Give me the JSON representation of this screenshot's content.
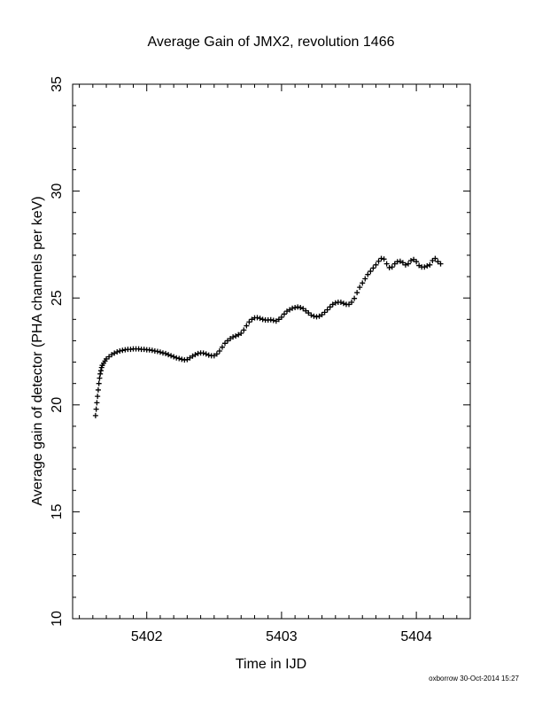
{
  "chart_data": {
    "type": "scatter",
    "title": "Average Gain of JMX2, revolution 1466",
    "xlabel": "Time in IJD",
    "ylabel": "Average gain of detector (PHA channels per keV)",
    "xlim": [
      5401.45,
      5404.4
    ],
    "ylim": [
      10,
      35
    ],
    "xticks": [
      "5402",
      "5403",
      "5404"
    ],
    "yticks": [
      "10",
      "15",
      "20",
      "25",
      "30",
      "35"
    ],
    "grid": false,
    "marker": "plus",
    "series": [
      {
        "points": [
          [
            5401.62,
            19.5
          ],
          [
            5401.625,
            19.8
          ],
          [
            5401.63,
            20.1
          ],
          [
            5401.635,
            20.4
          ],
          [
            5401.64,
            20.7
          ],
          [
            5401.645,
            21.0
          ],
          [
            5401.65,
            21.25
          ],
          [
            5401.655,
            21.45
          ],
          [
            5401.66,
            21.6
          ],
          [
            5401.665,
            21.75
          ],
          [
            5401.67,
            21.85
          ],
          [
            5401.68,
            21.95
          ],
          [
            5401.69,
            22.05
          ],
          [
            5401.7,
            22.15
          ],
          [
            5401.72,
            22.25
          ],
          [
            5401.74,
            22.35
          ],
          [
            5401.76,
            22.42
          ],
          [
            5401.78,
            22.48
          ],
          [
            5401.8,
            22.52
          ],
          [
            5401.82,
            22.55
          ],
          [
            5401.84,
            22.58
          ],
          [
            5401.86,
            22.6
          ],
          [
            5401.88,
            22.6
          ],
          [
            5401.9,
            22.62
          ],
          [
            5401.92,
            22.62
          ],
          [
            5401.94,
            22.62
          ],
          [
            5401.96,
            22.6
          ],
          [
            5401.98,
            22.6
          ],
          [
            5402.0,
            22.58
          ],
          [
            5402.02,
            22.57
          ],
          [
            5402.04,
            22.55
          ],
          [
            5402.06,
            22.52
          ],
          [
            5402.08,
            22.5
          ],
          [
            5402.1,
            22.47
          ],
          [
            5402.12,
            22.43
          ],
          [
            5402.14,
            22.4
          ],
          [
            5402.16,
            22.35
          ],
          [
            5402.18,
            22.3
          ],
          [
            5402.2,
            22.25
          ],
          [
            5402.22,
            22.2
          ],
          [
            5402.24,
            22.17
          ],
          [
            5402.26,
            22.13
          ],
          [
            5402.28,
            22.1
          ],
          [
            5402.3,
            22.12
          ],
          [
            5402.32,
            22.2
          ],
          [
            5402.34,
            22.28
          ],
          [
            5402.36,
            22.35
          ],
          [
            5402.38,
            22.4
          ],
          [
            5402.4,
            22.43
          ],
          [
            5402.42,
            22.42
          ],
          [
            5402.44,
            22.38
          ],
          [
            5402.46,
            22.33
          ],
          [
            5402.48,
            22.3
          ],
          [
            5402.5,
            22.3
          ],
          [
            5402.52,
            22.38
          ],
          [
            5402.54,
            22.52
          ],
          [
            5402.56,
            22.7
          ],
          [
            5402.58,
            22.88
          ],
          [
            5402.6,
            23.0
          ],
          [
            5402.62,
            23.1
          ],
          [
            5402.64,
            23.18
          ],
          [
            5402.66,
            23.22
          ],
          [
            5402.68,
            23.28
          ],
          [
            5402.7,
            23.35
          ],
          [
            5402.72,
            23.5
          ],
          [
            5402.74,
            23.7
          ],
          [
            5402.76,
            23.88
          ],
          [
            5402.78,
            24.0
          ],
          [
            5402.8,
            24.07
          ],
          [
            5402.82,
            24.08
          ],
          [
            5402.84,
            24.05
          ],
          [
            5402.86,
            24.0
          ],
          [
            5402.88,
            23.97
          ],
          [
            5402.9,
            23.97
          ],
          [
            5402.92,
            23.98
          ],
          [
            5402.94,
            23.95
          ],
          [
            5402.96,
            23.92
          ],
          [
            5402.98,
            24.0
          ],
          [
            5403.0,
            24.1
          ],
          [
            5403.02,
            24.25
          ],
          [
            5403.04,
            24.38
          ],
          [
            5403.06,
            24.45
          ],
          [
            5403.08,
            24.52
          ],
          [
            5403.1,
            24.55
          ],
          [
            5403.12,
            24.58
          ],
          [
            5403.14,
            24.55
          ],
          [
            5403.16,
            24.5
          ],
          [
            5403.18,
            24.4
          ],
          [
            5403.2,
            24.3
          ],
          [
            5403.22,
            24.2
          ],
          [
            5403.24,
            24.15
          ],
          [
            5403.26,
            24.12
          ],
          [
            5403.28,
            24.15
          ],
          [
            5403.3,
            24.22
          ],
          [
            5403.32,
            24.33
          ],
          [
            5403.34,
            24.45
          ],
          [
            5403.36,
            24.58
          ],
          [
            5403.38,
            24.7
          ],
          [
            5403.4,
            24.77
          ],
          [
            5403.42,
            24.8
          ],
          [
            5403.44,
            24.8
          ],
          [
            5403.46,
            24.75
          ],
          [
            5403.48,
            24.7
          ],
          [
            5403.5,
            24.7
          ],
          [
            5403.52,
            24.8
          ],
          [
            5403.54,
            24.98
          ],
          [
            5403.56,
            25.25
          ],
          [
            5403.58,
            25.5
          ],
          [
            5403.6,
            25.7
          ],
          [
            5403.62,
            25.9
          ],
          [
            5403.64,
            26.1
          ],
          [
            5403.66,
            26.25
          ],
          [
            5403.68,
            26.4
          ],
          [
            5403.7,
            26.55
          ],
          [
            5403.72,
            26.72
          ],
          [
            5403.74,
            26.85
          ],
          [
            5403.76,
            26.82
          ],
          [
            5403.78,
            26.6
          ],
          [
            5403.8,
            26.42
          ],
          [
            5403.82,
            26.45
          ],
          [
            5403.84,
            26.6
          ],
          [
            5403.86,
            26.7
          ],
          [
            5403.88,
            26.72
          ],
          [
            5403.9,
            26.65
          ],
          [
            5403.92,
            26.55
          ],
          [
            5403.94,
            26.6
          ],
          [
            5403.96,
            26.75
          ],
          [
            5403.98,
            26.8
          ],
          [
            5404.0,
            26.7
          ],
          [
            5404.02,
            26.52
          ],
          [
            5404.04,
            26.45
          ],
          [
            5404.06,
            26.45
          ],
          [
            5404.08,
            26.5
          ],
          [
            5404.1,
            26.55
          ],
          [
            5404.12,
            26.75
          ],
          [
            5404.14,
            26.85
          ],
          [
            5404.16,
            26.7
          ],
          [
            5404.18,
            26.6
          ]
        ]
      }
    ]
  },
  "footer": {
    "credit": "oxborrow 30-Oct-2014 15:27"
  }
}
